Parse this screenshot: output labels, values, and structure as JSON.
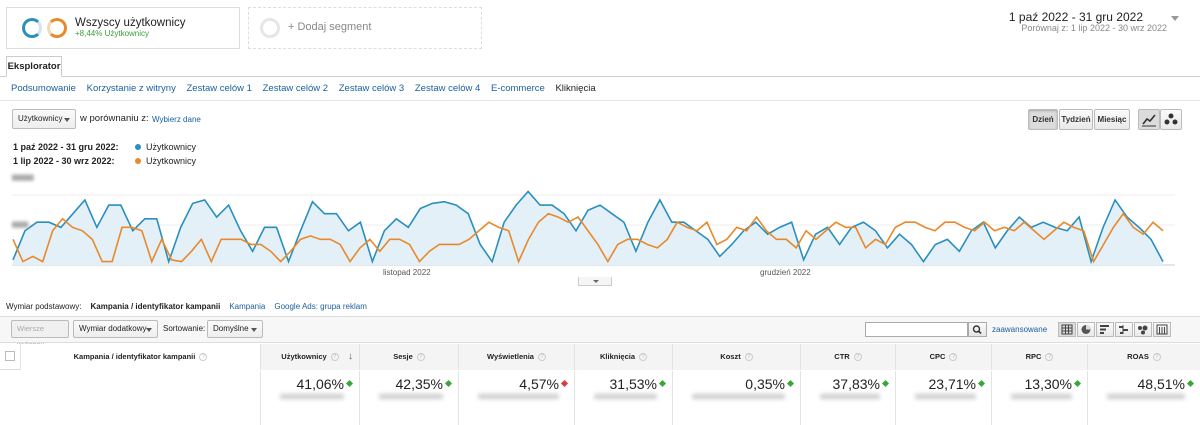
{
  "segments": {
    "all_users": {
      "title": "Wszyscy użytkownicy",
      "subtitle": "+8,44% Użytkownicy"
    },
    "add_segment": "+ Dodaj segment"
  },
  "date_range": {
    "main": "1 paź 2022 - 31 gru 2022",
    "compare": "Porównaj z: 1 lip 2022 - 30 wrz 2022"
  },
  "explorer_tab": "Eksplorator",
  "subtabs": [
    "Podsumowanie",
    "Korzystanie z witryny",
    "Zestaw celów 1",
    "Zestaw celów 2",
    "Zestaw celów 3",
    "Zestaw celów 4",
    "E-commerce",
    "Kliknięcia"
  ],
  "chart_controls": {
    "metric_select": "Użytkownicy",
    "compare_text": "w porównaniu z:",
    "pick_data": "Wybierz dane",
    "granularity": [
      "Dzień",
      "Tydzień",
      "Miesiąc"
    ],
    "granularity_selected": "Dzień"
  },
  "legend": [
    {
      "period": "1 paź 2022 - 31 gru 2022:",
      "metric": "Użytkownicy",
      "color": "#2a8fbd"
    },
    {
      "period": "1 lip 2022 - 30 wrz 2022:",
      "metric": "Użytkownicy",
      "color": "#e8892b"
    }
  ],
  "chart_data": {
    "type": "line",
    "x_labels": [
      "listopad 2022",
      "grudzień 2022"
    ],
    "series": [
      {
        "name": "Użytkownicy",
        "color": "#2a8fbd",
        "values": [
          3,
          20,
          25,
          25,
          22,
          30,
          38,
          22,
          35,
          35,
          20,
          27,
          27,
          2,
          22,
          36,
          38,
          28,
          35,
          20,
          8,
          22,
          22,
          2,
          20,
          37,
          30,
          30,
          20,
          25,
          2,
          20,
          27,
          22,
          33,
          36,
          37,
          35,
          30,
          12,
          2,
          25,
          35,
          43,
          35,
          35,
          30,
          20,
          32,
          35,
          30,
          25,
          8,
          25,
          38,
          25,
          25,
          20,
          15,
          5,
          12,
          20,
          25,
          18,
          22,
          25,
          3,
          18,
          22,
          12,
          22,
          25,
          20,
          10,
          18,
          12,
          2,
          12,
          15,
          8,
          20,
          25,
          10,
          20,
          28,
          22,
          25,
          22,
          20,
          28,
          2,
          22,
          38,
          28,
          22,
          15,
          2
        ]
      },
      {
        "name": "Użytkownicy",
        "color": "#e8892b",
        "values": [
          15,
          2,
          5,
          2,
          20,
          27,
          22,
          20,
          15,
          2,
          2,
          22,
          22,
          20,
          2,
          15,
          3,
          2,
          8,
          15,
          2,
          15,
          15,
          15,
          12,
          12,
          8,
          2,
          8,
          15,
          17,
          15,
          15,
          12,
          2,
          10,
          15,
          8,
          15,
          15,
          12,
          2,
          8,
          12,
          12,
          12,
          15,
          20,
          25,
          22,
          20,
          2,
          15,
          25,
          30,
          28,
          25,
          28,
          20,
          12,
          2,
          12,
          15,
          15,
          12,
          10,
          15,
          25,
          22,
          20,
          25,
          12,
          15,
          22,
          20,
          28,
          20,
          15,
          15,
          10,
          20,
          15,
          20,
          25,
          22,
          22,
          10,
          15,
          12,
          22,
          25,
          25,
          22,
          20,
          25,
          25,
          22,
          20,
          25,
          20,
          22,
          20,
          25,
          20,
          15,
          20,
          25,
          22,
          20,
          2,
          12,
          22,
          30,
          22,
          18,
          25,
          20
        ]
      }
    ]
  },
  "dimension": {
    "label": "Wymiar podstawowy:",
    "selected": "Kampania / identyfikator kampanii",
    "options": [
      "Kampania",
      "Google Ads: grupa reklam"
    ]
  },
  "toolbar": {
    "plot_rows": "Wiersze wykresu",
    "secondary_dim": "Wymiar dodatkowy",
    "sort_label": "Sortowanie:",
    "sort_value": "Domyślne",
    "advanced": "zaawansowane"
  },
  "table": {
    "dimension_header": "Kampania / identyfikator kampanii",
    "columns": [
      {
        "name": "Użytkownicy",
        "value": "41,06%",
        "trend": "up"
      },
      {
        "name": "Sesje",
        "value": "42,35%",
        "trend": "up"
      },
      {
        "name": "Wyświetlenia",
        "value": "4,57%",
        "trend": "down"
      },
      {
        "name": "Kliknięcia",
        "value": "31,53%",
        "trend": "up"
      },
      {
        "name": "Koszt",
        "value": "0,35%",
        "trend": "up"
      },
      {
        "name": "CTR",
        "value": "37,83%",
        "trend": "up"
      },
      {
        "name": "CPC",
        "value": "23,71%",
        "trend": "up"
      },
      {
        "name": "RPC",
        "value": "13,30%",
        "trend": "up"
      },
      {
        "name": "ROAS",
        "value": "48,51%",
        "trend": "up"
      }
    ],
    "help_mark": "?"
  },
  "colors": {
    "up": "#3aa53a",
    "down": "#e03a3a",
    "link": "#1a5f9e"
  }
}
